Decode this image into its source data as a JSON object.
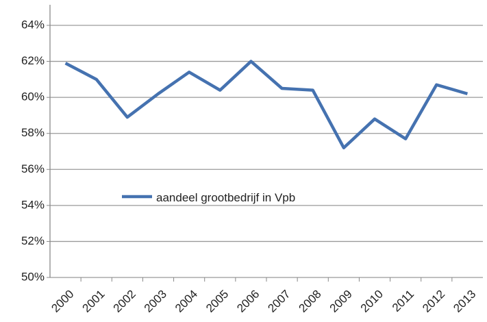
{
  "chart_data": {
    "type": "line",
    "categories": [
      "2000",
      "2001",
      "2002",
      "2003",
      "2004",
      "2005",
      "2006",
      "2007",
      "2008",
      "2009",
      "2010",
      "2011",
      "2012",
      "2013"
    ],
    "series": [
      {
        "name": "aandeel grootbedrijf in Vpb",
        "color": "#4572b0",
        "values": [
          61.9,
          61.0,
          58.9,
          60.2,
          61.4,
          60.4,
          62.0,
          60.5,
          60.4,
          57.2,
          58.8,
          57.7,
          60.7,
          60.2
        ]
      }
    ],
    "ylim": [
      50,
      64
    ],
    "yticks": [
      {
        "value": 50,
        "label": "50%"
      },
      {
        "value": 52,
        "label": "52%"
      },
      {
        "value": 54,
        "label": "54%"
      },
      {
        "value": 56,
        "label": "56%"
      },
      {
        "value": 58,
        "label": "58%"
      },
      {
        "value": 60,
        "label": "60%"
      },
      {
        "value": 62,
        "label": "62%"
      },
      {
        "value": 64,
        "label": "64%"
      }
    ],
    "grid": true,
    "legend": "center-left"
  }
}
